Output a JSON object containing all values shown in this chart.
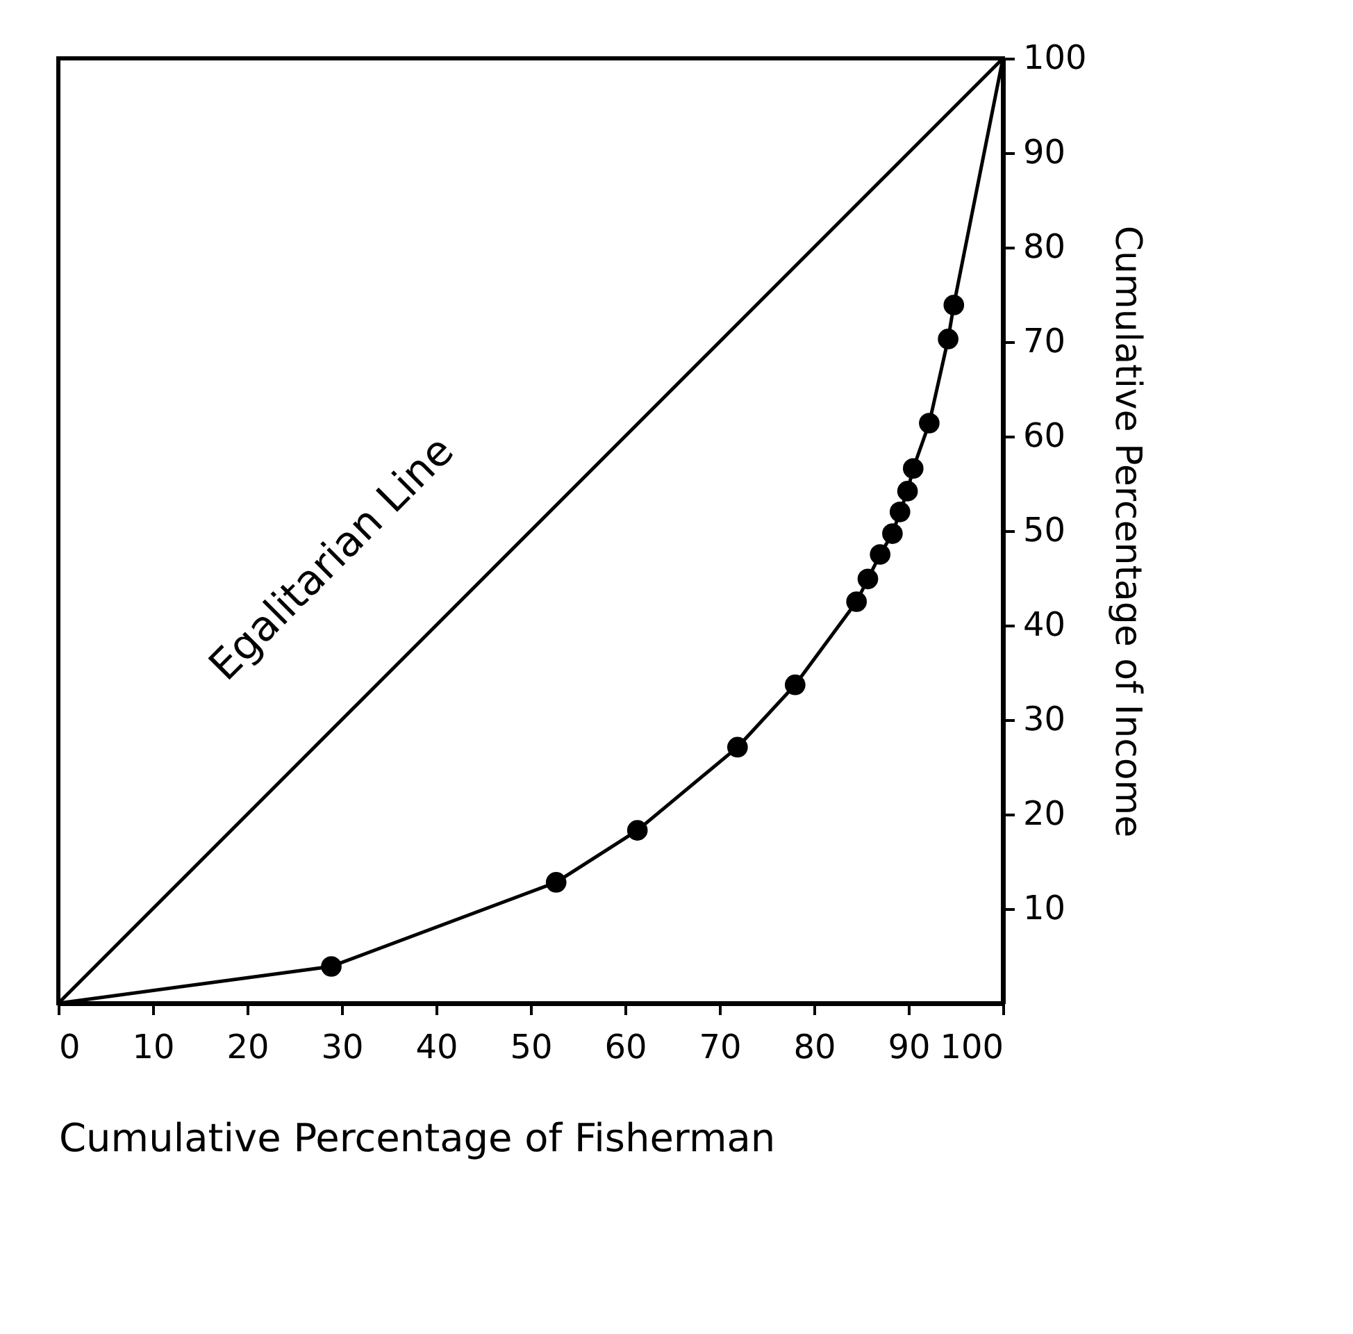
{
  "chart_data": {
    "type": "line",
    "xlabel": "Cumulative Percentage of Fisherman",
    "ylabel": "Cumulative Percentage of Income",
    "xlim": [
      0,
      100
    ],
    "ylim": [
      0,
      100
    ],
    "xticks": [
      0,
      10,
      20,
      30,
      40,
      50,
      60,
      70,
      80,
      90,
      100
    ],
    "yticks": [
      10,
      20,
      30,
      40,
      50,
      60,
      70,
      80,
      90,
      100
    ],
    "grid": false,
    "line_style": "solid",
    "series": [
      {
        "color": "#000000",
        "x": [
          0,
          100
        ],
        "values": [
          0,
          100
        ]
      },
      {
        "color": "#000000",
        "x": [
          0,
          28.9,
          52.7,
          61.3,
          71.9,
          78.0,
          84.5,
          85.7,
          87.0,
          88.3,
          89.1,
          89.9,
          90.5,
          92.2,
          94.2,
          94.8,
          100
        ],
        "values": [
          0,
          3.9,
          12.8,
          18.3,
          27.1,
          33.7,
          42.5,
          44.9,
          47.5,
          49.7,
          52.0,
          54.2,
          56.6,
          61.4,
          70.3,
          73.9,
          100
        ]
      },
      {
        "type": "scatter",
        "color": "#000000",
        "marker": "circle",
        "x": [
          28.9,
          52.7,
          61.3,
          71.9,
          78.0,
          84.5,
          85.7,
          87.0,
          88.3,
          89.1,
          89.9,
          90.5,
          92.2,
          94.2,
          94.8
        ],
        "values": [
          3.9,
          12.8,
          18.3,
          27.1,
          33.7,
          42.5,
          44.9,
          47.5,
          49.7,
          52.0,
          54.2,
          56.6,
          61.4,
          70.3,
          73.9
        ]
      }
    ],
    "annotations": [
      "Egalitarian Line"
    ]
  }
}
